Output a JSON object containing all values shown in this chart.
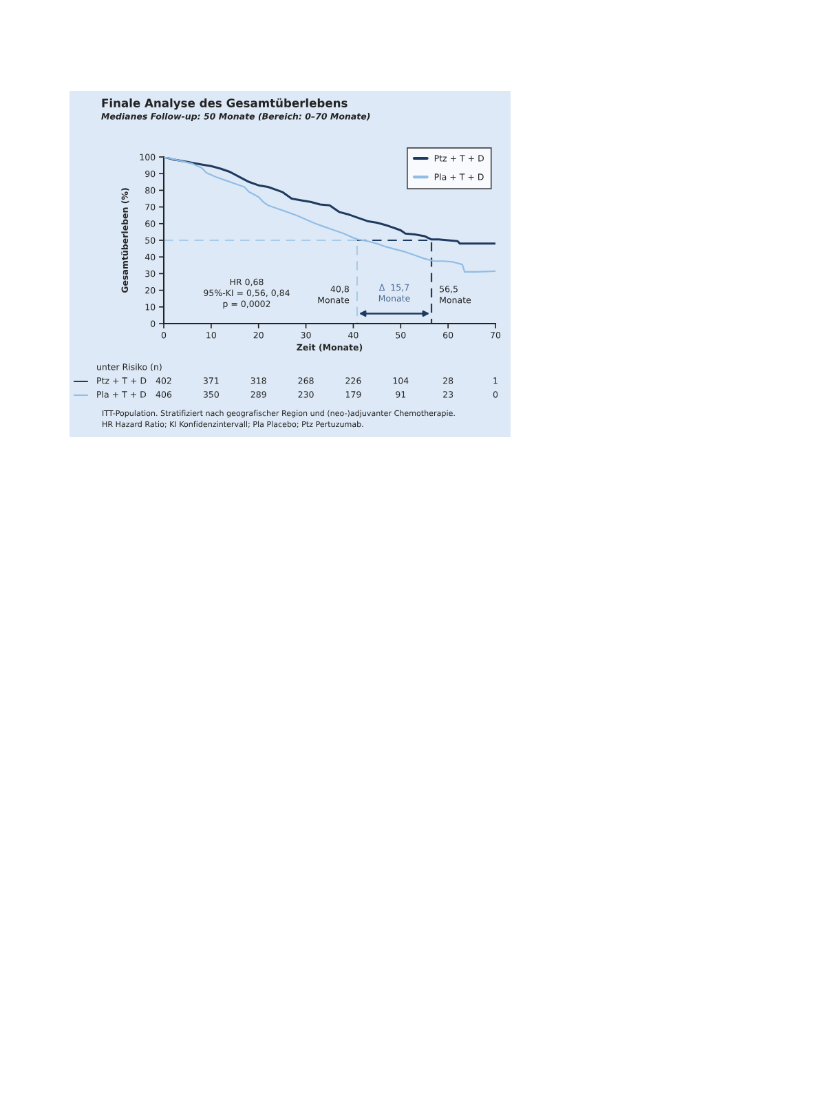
{
  "chart_data": {
    "type": "line",
    "title": "Finale Analyse des Gesamtüberlebens",
    "subtitle": "Medianes Follow-up: 50 Monate (Bereich: 0–70 Monate)",
    "xlabel": "Zeit (Monate)",
    "ylabel": "Gesamtüberleben (%)",
    "xlim": [
      0,
      70
    ],
    "xticks": [
      0,
      10,
      20,
      30,
      40,
      50,
      60,
      70
    ],
    "ylim": [
      0,
      100
    ],
    "yticks": [
      0,
      10,
      20,
      30,
      40,
      50,
      60,
      70,
      80,
      90,
      100
    ],
    "grid": false,
    "legend": "top right",
    "series": [
      {
        "name": "Ptz + T + D",
        "color": "#1f3a5f",
        "x": [
          0,
          2,
          5,
          8,
          10,
          12,
          14,
          16,
          18,
          20,
          22,
          24,
          25,
          27,
          29,
          31,
          33,
          35,
          37,
          39,
          41,
          43,
          45,
          47,
          48,
          49,
          50,
          51,
          53,
          55,
          56.5,
          58,
          60,
          62,
          62.5,
          64,
          70
        ],
        "values": [
          100,
          98.5,
          97,
          95.5,
          94.5,
          93,
          91,
          88,
          85,
          83,
          82,
          80,
          79,
          75,
          74,
          73,
          71.5,
          71,
          67,
          65.5,
          63.5,
          61.5,
          60.5,
          59,
          58,
          57,
          56,
          54,
          53.5,
          52.5,
          50.5,
          50.5,
          50,
          49.5,
          48,
          48,
          48
        ]
      },
      {
        "name": "Pla + T + D",
        "color": "#90bde6",
        "x": [
          0,
          3,
          6,
          8,
          9,
          11,
          13,
          15,
          17,
          18,
          20,
          21,
          22,
          24,
          26,
          28,
          30,
          32,
          34,
          36,
          38,
          40,
          41,
          43,
          45,
          47,
          49,
          51,
          53,
          55,
          57,
          59,
          61,
          63,
          63.5,
          66,
          70
        ],
        "values": [
          100,
          98,
          96,
          93.5,
          90.5,
          88,
          86,
          84,
          82,
          79,
          76,
          73,
          71,
          69,
          67,
          65,
          62.5,
          60,
          58,
          56,
          54,
          51.5,
          50.5,
          49.5,
          48,
          46,
          44.5,
          43,
          41,
          39,
          37.5,
          37.5,
          37,
          35.5,
          31,
          31,
          31.5
        ]
      },
      {
        "type": "line",
        "line_style": "dashed",
        "color": "#a9cbea",
        "x": [
          0,
          40.8,
          40.8
        ],
        "values": [
          50,
          50,
          0
        ]
      },
      {
        "type": "line",
        "line_style": "dashed",
        "color": "#1f3a5f",
        "x": [
          40.8,
          56.5,
          56.5
        ],
        "values": [
          50,
          50,
          0
        ]
      }
    ],
    "annotations": [
      "HR 0,68\n95%-KI = 0,56, 0,84\np = 0,0002",
      {
        "text": "40,8\nMonate",
        "x": 40.8,
        "y": 17
      },
      "Δ  15,7\nMonate",
      {
        "text": "56,5\nMonate",
        "x": 56.5,
        "y": 17
      },
      "unter Risiko (n)",
      "Ptz + T + D",
      "402",
      "371",
      "318",
      "268",
      "226",
      "104",
      "28",
      "1",
      "Pla + T + D",
      "406",
      "350",
      "289",
      "230",
      "179",
      "91",
      "23",
      "0",
      "ITT-Population. Stratifiziert nach geografischer Region und (neo-)adjuvanter Chemotherapie.",
      "HR Hazard Ratio; KI Konfidenzintervall; Pla Placebo; Ptz Pertuzumab."
    ]
  }
}
